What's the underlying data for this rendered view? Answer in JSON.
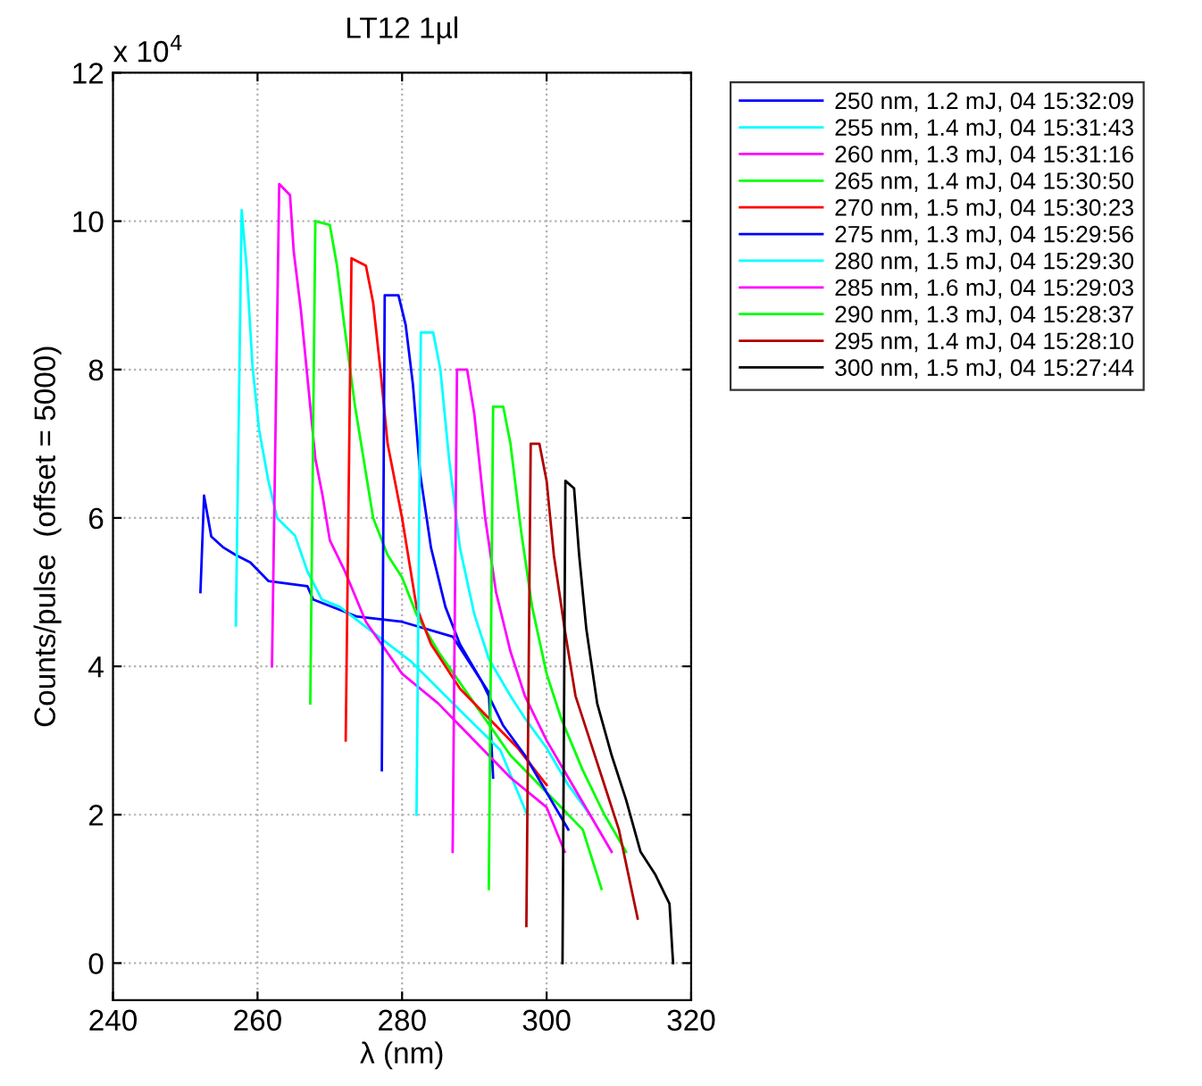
{
  "chart_data": {
    "type": "line",
    "title": "LT12 1µl",
    "xlabel": "λ (nm)",
    "ylabel": "Counts/pulse  (offset = 5000)",
    "annotations": [
      "x 10$^{4}$"
    ],
    "xlim": [
      240,
      320
    ],
    "xticks": [
      240,
      260,
      280,
      300,
      320
    ],
    "ylim": [
      -0.5,
      12
    ],
    "yticks": [
      0,
      2,
      4,
      6,
      8,
      10,
      12
    ],
    "grid": true,
    "legend": "top right",
    "marker": "none",
    "line_style": "solid",
    "series": [
      {
        "name": "250 nm, 1.2 mJ, 04 15:32:09",
        "color": "#0000ff",
        "x": [
          252.1,
          252.6,
          253.6,
          255.3,
          257,
          259,
          261.5,
          266.9,
          267.7,
          273.8,
          280,
          287,
          292,
          292.6
        ],
        "values": [
          5.0,
          6.3,
          5.75,
          5.6,
          5.5,
          5.4,
          5.15,
          5.08,
          4.9,
          4.67,
          4.6,
          4.4,
          3.65,
          2.5
        ]
      },
      {
        "name": "255 nm, 1.4 mJ, 04 15:31:43",
        "color": "#00ffff",
        "x": [
          257,
          257.8,
          258.5,
          259.3,
          260.2,
          261.5,
          262.7,
          265.2,
          266.9,
          268.9,
          271.4,
          281.2,
          288.6,
          293.6,
          297.3
        ],
        "values": [
          4.55,
          10.15,
          9.37,
          8.05,
          7.2,
          6.5,
          6.0,
          5.76,
          5.28,
          4.9,
          4.8,
          4.07,
          3.35,
          2.87,
          2.0
        ]
      },
      {
        "name": "260 nm, 1.3 mJ, 04 15:31:16",
        "color": "#ff00ff",
        "x": [
          262,
          263,
          264.5,
          265,
          266,
          267,
          268,
          269,
          270,
          272,
          275,
          280,
          285,
          290,
          295,
          300,
          302.5
        ],
        "values": [
          4.0,
          10.5,
          10.35,
          9.6,
          8.8,
          7.8,
          6.8,
          6.3,
          5.7,
          5.3,
          4.6,
          3.9,
          3.5,
          3.0,
          2.5,
          2.1,
          1.5
        ]
      },
      {
        "name": "265 nm, 1.4 mJ, 04 15:30:50",
        "color": "#00ff00",
        "x": [
          267.3,
          268,
          270,
          271,
          272,
          273.5,
          275,
          276,
          278,
          280,
          282,
          285,
          290,
          295,
          300,
          305,
          307.6
        ],
        "values": [
          3.5,
          10.0,
          9.95,
          9.4,
          8.6,
          7.5,
          6.6,
          6.0,
          5.5,
          5.2,
          4.7,
          4.2,
          3.5,
          2.8,
          2.3,
          1.8,
          1.0
        ]
      },
      {
        "name": "270 nm, 1.5 mJ, 04 15:30:23",
        "color": "#ff0000",
        "x": [
          272.2,
          273,
          275,
          276,
          277,
          278,
          280,
          282,
          284,
          286,
          288,
          292,
          296,
          300
        ],
        "values": [
          3.0,
          9.5,
          9.4,
          8.9,
          8.0,
          7.0,
          6.0,
          4.8,
          4.3,
          4.0,
          3.7,
          3.3,
          2.9,
          2.4
        ]
      },
      {
        "name": "275 nm, 1.3 mJ, 04 15:29:56",
        "color": "#0000ff",
        "x": [
          277.2,
          277.6,
          279.5,
          280.5,
          281.5,
          282.5,
          284,
          286,
          288,
          291,
          294,
          297,
          300,
          303
        ],
        "values": [
          2.6,
          9.0,
          9.0,
          8.6,
          7.8,
          6.6,
          5.6,
          4.8,
          4.3,
          3.8,
          3.2,
          2.8,
          2.3,
          1.8
        ]
      },
      {
        "name": "280 nm, 1.5 mJ, 04 15:29:30",
        "color": "#00ffff",
        "x": [
          282,
          282.6,
          284.3,
          285.3,
          286.5,
          288,
          290,
          292,
          295,
          297,
          300,
          303,
          306
        ],
        "values": [
          2.0,
          8.5,
          8.5,
          8.0,
          6.8,
          5.6,
          4.7,
          4.1,
          3.6,
          3.3,
          2.9,
          2.4,
          2.0
        ]
      },
      {
        "name": "285 nm, 1.6 mJ, 04 15:29:03",
        "color": "#ff00ff",
        "x": [
          287,
          287.6,
          289,
          290,
          291.5,
          293,
          295,
          297,
          300,
          303,
          306,
          309
        ],
        "values": [
          1.5,
          8.0,
          8.0,
          7.4,
          6.0,
          5.0,
          4.2,
          3.6,
          3.0,
          2.5,
          2.0,
          1.5
        ]
      },
      {
        "name": "290 nm, 1.3 mJ, 04 15:28:37",
        "color": "#00ff00",
        "x": [
          292,
          292.6,
          294,
          295,
          296.5,
          298,
          300,
          302,
          305,
          308,
          311
        ],
        "values": [
          1.0,
          7.5,
          7.5,
          7.0,
          5.8,
          4.8,
          3.9,
          3.3,
          2.6,
          2.0,
          1.5
        ]
      },
      {
        "name": "295 nm, 1.4 mJ, 04 15:28:10",
        "color": "#b00000",
        "x": [
          297.2,
          297.8,
          299,
          300,
          301,
          302.5,
          304,
          306,
          308,
          310,
          312.6
        ],
        "values": [
          0.5,
          7.0,
          7.0,
          6.5,
          5.5,
          4.5,
          3.6,
          3.0,
          2.4,
          1.8,
          0.6
        ]
      },
      {
        "name": "300 nm, 1.5 mJ, 04 15:27:44",
        "color": "#000000",
        "x": [
          302.2,
          302.6,
          303.8,
          304.5,
          305.5,
          307,
          309,
          311,
          313,
          315,
          317,
          317.5
        ],
        "values": [
          0.0,
          6.5,
          6.4,
          5.5,
          4.5,
          3.5,
          2.8,
          2.2,
          1.5,
          1.2,
          0.8,
          0.0
        ]
      }
    ]
  }
}
